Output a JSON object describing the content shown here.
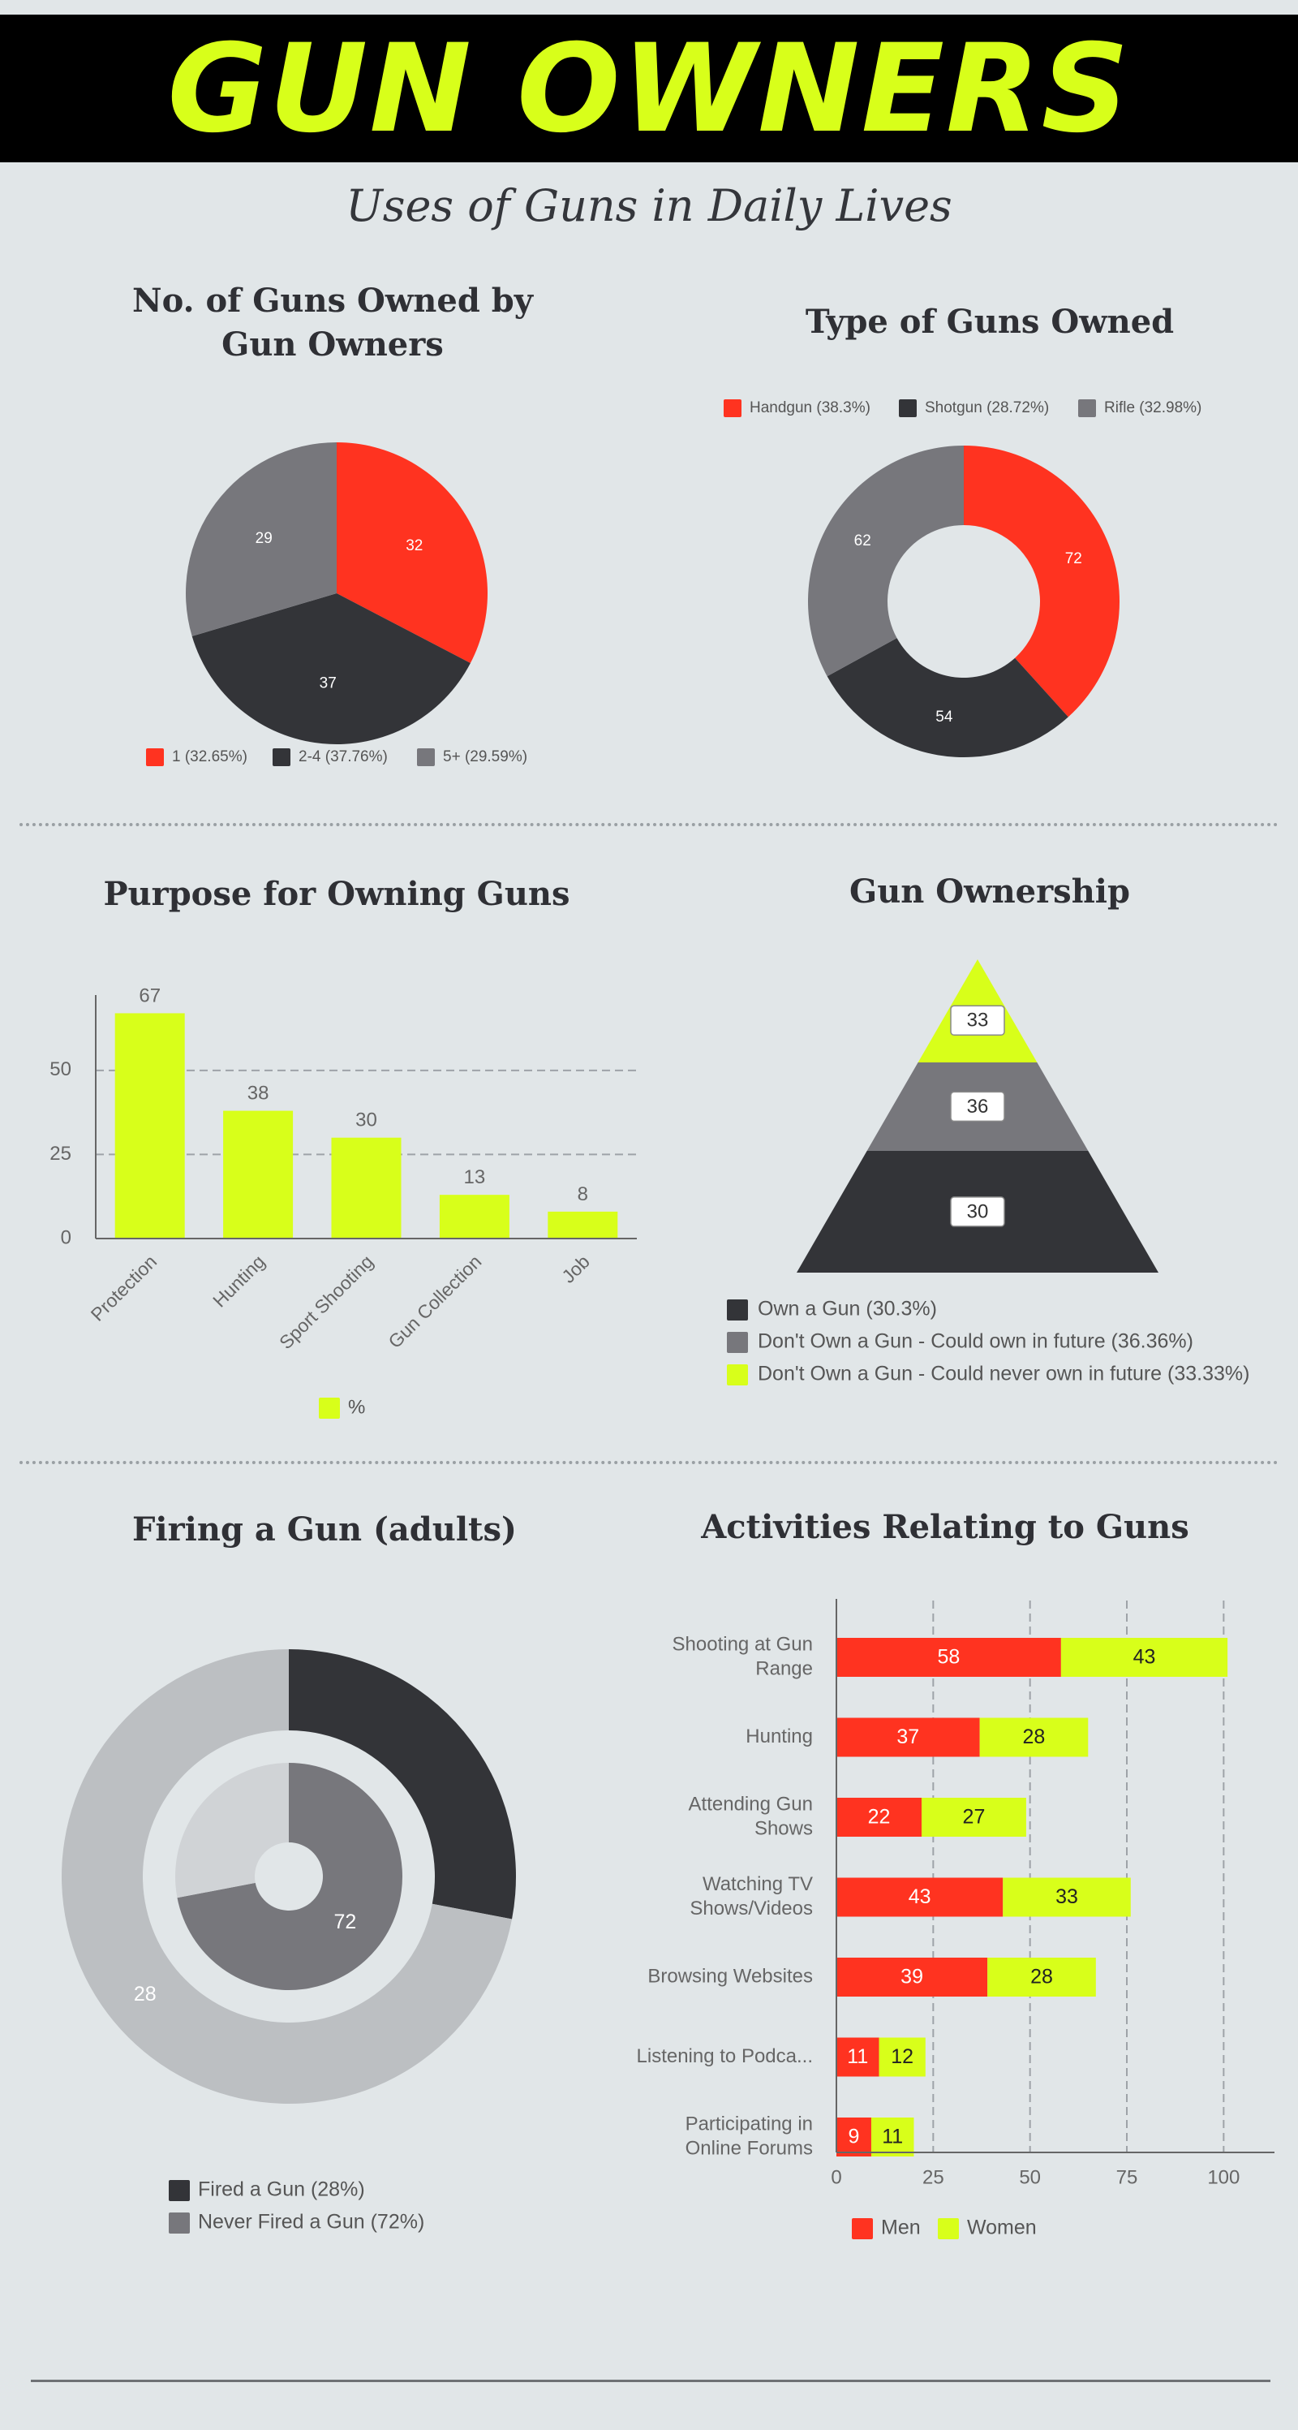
{
  "header": {
    "title": "GUN OWNERS",
    "subtitle": "Uses of Guns in Daily Lives"
  },
  "colors": {
    "red": "#ff3320",
    "dark": "#333438",
    "gray": "#77777c",
    "lightgray": "#bcbfc2",
    "palegray": "#d0d3d6",
    "lime": "#d8ff1a",
    "banner": "#000000"
  },
  "sections": {
    "guns_owned_title": "No. of Guns Owned by Gun Owners",
    "type_title": "Type of Guns Owned",
    "purpose_title": "Purpose for Owning Guns",
    "ownership_title": "Gun Ownership",
    "firing_title": "Firing a Gun (adults)",
    "activities_title": "Activities Relating to Guns"
  },
  "chart_data": [
    {
      "id": "guns-owned",
      "type": "pie",
      "title": "No. of Guns Owned by Gun Owners",
      "slices": [
        {
          "label": "1",
          "value": 32,
          "legend": "1 (32.65%)",
          "color": "#ff3320"
        },
        {
          "label": "2-4",
          "value": 37,
          "legend": "2-4 (37.76%)",
          "color": "#333438"
        },
        {
          "label": "5+",
          "value": 29,
          "legend": "5+ (29.59%)",
          "color": "#77777c"
        }
      ],
      "legend_position": "bottom"
    },
    {
      "id": "gun-types",
      "type": "pie",
      "donut": true,
      "title": "Type of Guns Owned",
      "slices": [
        {
          "label": "Handgun",
          "value": 72,
          "legend": "Handgun (38.3%)",
          "color": "#ff3320"
        },
        {
          "label": "Shotgun",
          "value": 54,
          "legend": "Shotgun (28.72%)",
          "color": "#333438"
        },
        {
          "label": "Rifle",
          "value": 62,
          "legend": "Rifle (32.98%)",
          "color": "#77777c"
        }
      ],
      "legend_position": "top"
    },
    {
      "id": "purpose",
      "type": "bar",
      "title": "Purpose for Owning Guns",
      "categories": [
        "Protection",
        "Hunting",
        "Sport Shooting",
        "Gun Collection",
        "Job"
      ],
      "series": [
        {
          "name": "%",
          "values": [
            67,
            38,
            30,
            13,
            8
          ],
          "color": "#d8ff1a"
        }
      ],
      "yticks": [
        0,
        25,
        50
      ],
      "ylim": [
        0,
        70
      ],
      "grid": true,
      "legend_position": "bottom"
    },
    {
      "id": "ownership",
      "type": "pyramid",
      "title": "Gun Ownership",
      "levels": [
        {
          "value": 33,
          "legend": "Don't Own a Gun - Could never own in future (33.33%)",
          "color": "#d8ff1a"
        },
        {
          "value": 36,
          "legend": "Don't Own a Gun - Could own in future (36.36%)",
          "color": "#77777c"
        },
        {
          "value": 30,
          "legend": "Own a Gun (30.3%)",
          "color": "#333438"
        }
      ],
      "legend_order": [
        2,
        1,
        0
      ],
      "legend_position": "bottom"
    },
    {
      "id": "firing",
      "type": "pie",
      "donut": true,
      "nested": true,
      "title": "Firing a Gun (adults)",
      "outer": [
        {
          "value": 28,
          "label": "",
          "color": "#333438"
        },
        {
          "value": 72,
          "label": "28",
          "color": "#bcbfc2"
        }
      ],
      "inner": [
        {
          "value": 72,
          "label": "72",
          "color": "#77777c"
        },
        {
          "value": 28,
          "label": "",
          "color": "#d0d3d6"
        }
      ],
      "legend": [
        {
          "label": "Fired a Gun (28%)",
          "color": "#333438"
        },
        {
          "label": "Never Fired a Gun (72%)",
          "color": "#77777c"
        }
      ],
      "legend_position": "bottom"
    },
    {
      "id": "activities",
      "type": "bar",
      "orientation": "horizontal",
      "stacked": true,
      "title": "Activities Relating to Guns",
      "categories": [
        [
          "Shooting at Gun",
          "Range"
        ],
        [
          "Hunting"
        ],
        [
          "Attending Gun",
          "Shows"
        ],
        [
          "Watching TV",
          "Shows/Videos"
        ],
        [
          "Browsing Websites"
        ],
        [
          "Listening to Podca..."
        ],
        [
          "Participating in",
          "Online Forums"
        ]
      ],
      "series": [
        {
          "name": "Men",
          "values": [
            58,
            37,
            22,
            43,
            39,
            11,
            9
          ],
          "color": "#ff3320"
        },
        {
          "name": "Women",
          "values": [
            43,
            28,
            27,
            33,
            28,
            12,
            11
          ],
          "color": "#d8ff1a"
        }
      ],
      "xticks": [
        0,
        25,
        50,
        75,
        100
      ],
      "xlim": [
        0,
        106
      ],
      "grid": true,
      "legend_position": "bottom"
    }
  ]
}
